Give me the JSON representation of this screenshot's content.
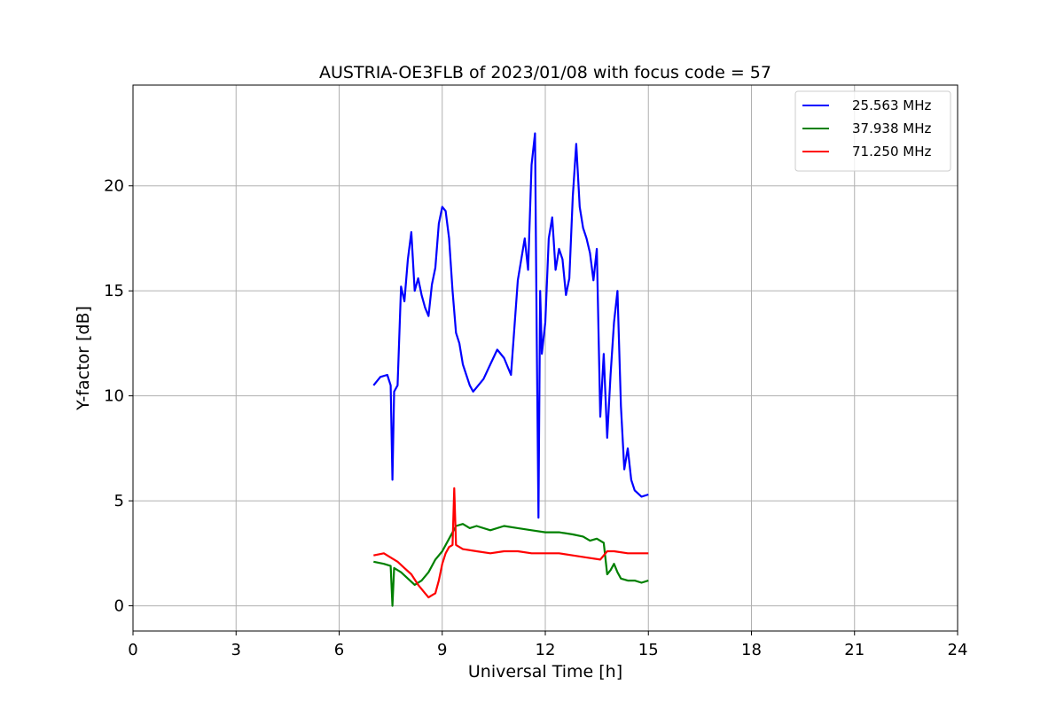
{
  "chart_data": {
    "type": "line",
    "title": "AUSTRIA-OE3FLB of 2023/01/08 with focus code = 57",
    "xlabel": "Universal Time [h]",
    "ylabel": "Y-factor [dB]",
    "xlim": [
      0,
      24
    ],
    "ylim": [
      -1.2,
      24.8
    ],
    "xticks": [
      0,
      3,
      6,
      9,
      12,
      15,
      18,
      21,
      24
    ],
    "yticks": [
      0,
      5,
      10,
      15,
      20
    ],
    "grid": true,
    "legend": "top-right",
    "series": [
      {
        "name": "25.563 MHz",
        "color": "#0000ff",
        "x": [
          7.0,
          7.2,
          7.4,
          7.5,
          7.55,
          7.6,
          7.7,
          7.8,
          7.9,
          8.0,
          8.1,
          8.2,
          8.3,
          8.4,
          8.5,
          8.6,
          8.7,
          8.8,
          8.9,
          9.0,
          9.1,
          9.2,
          9.3,
          9.4,
          9.5,
          9.6,
          9.7,
          9.8,
          9.9,
          10.0,
          10.2,
          10.4,
          10.6,
          10.8,
          11.0,
          11.2,
          11.4,
          11.5,
          11.6,
          11.7,
          11.75,
          11.8,
          11.85,
          11.9,
          12.0,
          12.1,
          12.2,
          12.3,
          12.4,
          12.5,
          12.6,
          12.7,
          12.8,
          12.9,
          13.0,
          13.1,
          13.2,
          13.3,
          13.4,
          13.5,
          13.6,
          13.7,
          13.8,
          13.9,
          14.0,
          14.1,
          14.2,
          14.3,
          14.4,
          14.5,
          14.6,
          14.8,
          15.0
        ],
        "y": [
          10.5,
          10.9,
          11.0,
          10.5,
          6.0,
          10.2,
          10.5,
          15.2,
          14.5,
          16.5,
          17.8,
          15.0,
          15.6,
          14.8,
          14.2,
          13.8,
          15.3,
          16.1,
          18.2,
          19.0,
          18.8,
          17.5,
          15.0,
          13.0,
          12.5,
          11.5,
          11.0,
          10.5,
          10.2,
          10.4,
          10.8,
          11.5,
          12.2,
          11.8,
          11.0,
          15.5,
          17.5,
          16.0,
          21.0,
          22.5,
          13.0,
          4.2,
          15.0,
          12.0,
          13.5,
          17.5,
          18.5,
          16.0,
          17.0,
          16.5,
          14.8,
          15.6,
          19.5,
          22.0,
          19.0,
          18.0,
          17.5,
          16.8,
          15.5,
          17.0,
          9.0,
          12.0,
          8.0,
          11.0,
          13.5,
          15.0,
          9.5,
          6.5,
          7.5,
          6.0,
          5.5,
          5.2,
          5.3
        ]
      },
      {
        "name": "37.938 MHz",
        "color": "#008000",
        "x": [
          7.0,
          7.3,
          7.5,
          7.55,
          7.6,
          7.8,
          8.0,
          8.2,
          8.4,
          8.6,
          8.8,
          9.0,
          9.2,
          9.4,
          9.6,
          9.8,
          10.0,
          10.4,
          10.8,
          11.2,
          11.6,
          12.0,
          12.4,
          12.8,
          13.1,
          13.3,
          13.5,
          13.7,
          13.8,
          13.9,
          14.0,
          14.1,
          14.2,
          14.4,
          14.6,
          14.8,
          15.0
        ],
        "y": [
          2.1,
          2.0,
          1.9,
          0.0,
          1.8,
          1.6,
          1.3,
          1.0,
          1.2,
          1.6,
          2.2,
          2.6,
          3.2,
          3.8,
          3.9,
          3.7,
          3.8,
          3.6,
          3.8,
          3.7,
          3.6,
          3.5,
          3.5,
          3.4,
          3.3,
          3.1,
          3.2,
          3.0,
          1.5,
          1.7,
          2.0,
          1.6,
          1.3,
          1.2,
          1.2,
          1.1,
          1.2
        ]
      },
      {
        "name": "71.250 MHz",
        "color": "#ff0000",
        "x": [
          7.0,
          7.3,
          7.5,
          7.7,
          7.9,
          8.1,
          8.3,
          8.5,
          8.6,
          8.7,
          8.8,
          8.9,
          9.0,
          9.1,
          9.2,
          9.3,
          9.35,
          9.4,
          9.6,
          10.0,
          10.4,
          10.8,
          11.2,
          11.6,
          12.0,
          12.4,
          12.8,
          13.2,
          13.6,
          13.8,
          14.0,
          14.4,
          14.8,
          15.0
        ],
        "y": [
          2.4,
          2.5,
          2.3,
          2.1,
          1.8,
          1.5,
          1.0,
          0.6,
          0.4,
          0.5,
          0.6,
          1.2,
          2.0,
          2.5,
          2.8,
          2.9,
          5.6,
          2.9,
          2.7,
          2.6,
          2.5,
          2.6,
          2.6,
          2.5,
          2.5,
          2.5,
          2.4,
          2.3,
          2.2,
          2.6,
          2.6,
          2.5,
          2.5,
          2.5
        ]
      }
    ]
  }
}
